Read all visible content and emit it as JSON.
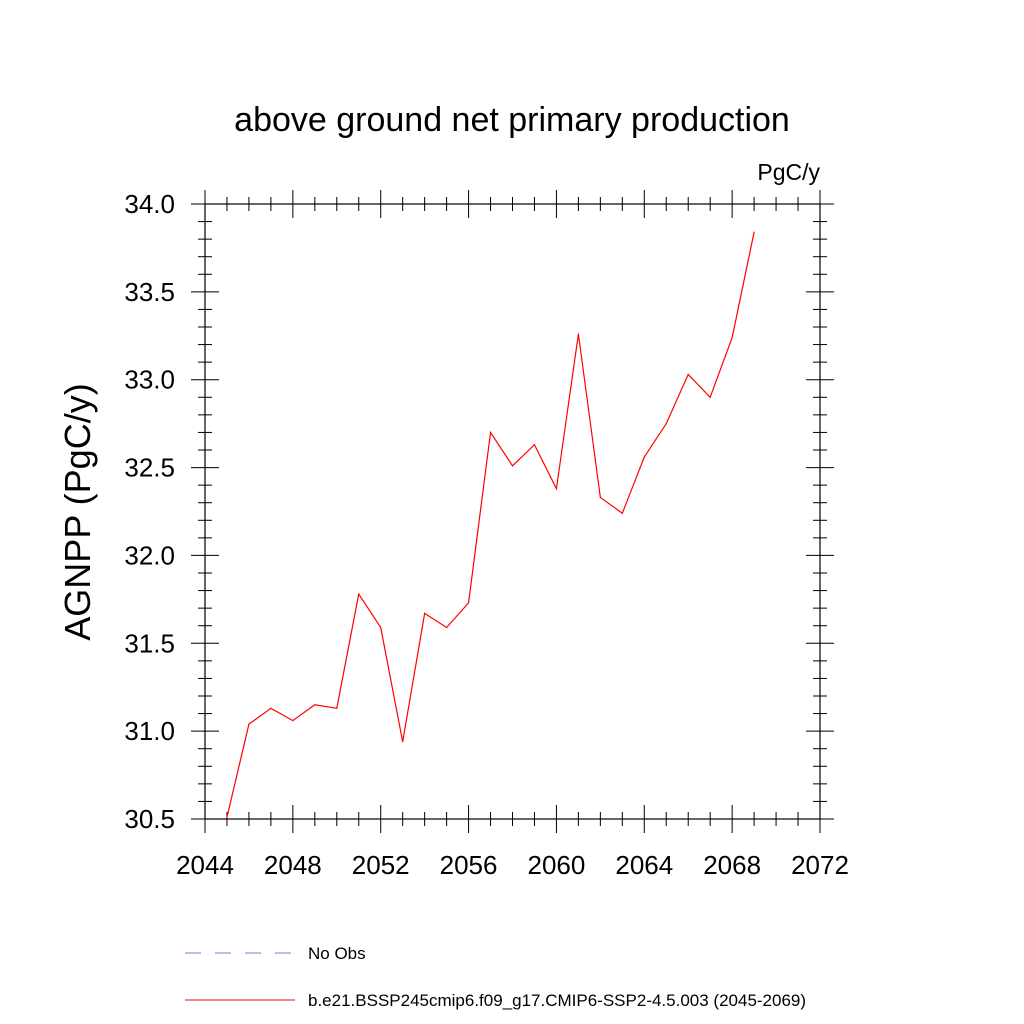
{
  "chart_data": {
    "type": "line",
    "title": "above ground net primary production",
    "units": "PgC/y",
    "ylabel": "AGNPP  (PgC/y)",
    "xlabel": "",
    "xlim": [
      2044,
      2072
    ],
    "ylim": [
      30.5,
      34.0
    ],
    "x_ticks": [
      2044,
      2048,
      2052,
      2056,
      2060,
      2064,
      2068,
      2072
    ],
    "x_tick_labels": [
      "2044",
      "2048",
      "2052",
      "2056",
      "2060",
      "2064",
      "2068",
      "2072"
    ],
    "y_ticks": [
      30.5,
      31.0,
      31.5,
      32.0,
      32.5,
      33.0,
      33.5,
      34.0
    ],
    "y_tick_labels": [
      "30.5",
      "31.0",
      "31.5",
      "32.0",
      "32.5",
      "33.0",
      "33.5",
      "34.0"
    ],
    "grid": false,
    "legend_position": "bottom",
    "series": [
      {
        "name": "b.e21.BSSP245cmip6.f09_g17.CMIP6-SSP2-4.5.003 (2045-2069)",
        "color": "#ff0000",
        "style": "solid",
        "x": [
          2045,
          2046,
          2047,
          2048,
          2049,
          2050,
          2051,
          2052,
          2053,
          2054,
          2055,
          2056,
          2057,
          2058,
          2059,
          2060,
          2061,
          2062,
          2063,
          2064,
          2065,
          2066,
          2067,
          2068,
          2069
        ],
        "values": [
          30.51,
          31.04,
          31.13,
          31.06,
          31.15,
          31.13,
          31.78,
          31.59,
          30.94,
          31.67,
          31.59,
          31.73,
          32.7,
          32.51,
          32.63,
          32.38,
          33.26,
          32.33,
          32.24,
          32.56,
          32.75,
          33.03,
          32.9,
          33.24,
          33.84
        ]
      }
    ],
    "legend": [
      {
        "label": "No Obs",
        "color": "#7a7ad0",
        "style": "dashed"
      },
      {
        "label": "b.e21.BSSP245cmip6.f09_g17.CMIP6-SSP2-4.5.003 (2045-2069)",
        "color": "#ff0000",
        "style": "solid"
      }
    ]
  }
}
